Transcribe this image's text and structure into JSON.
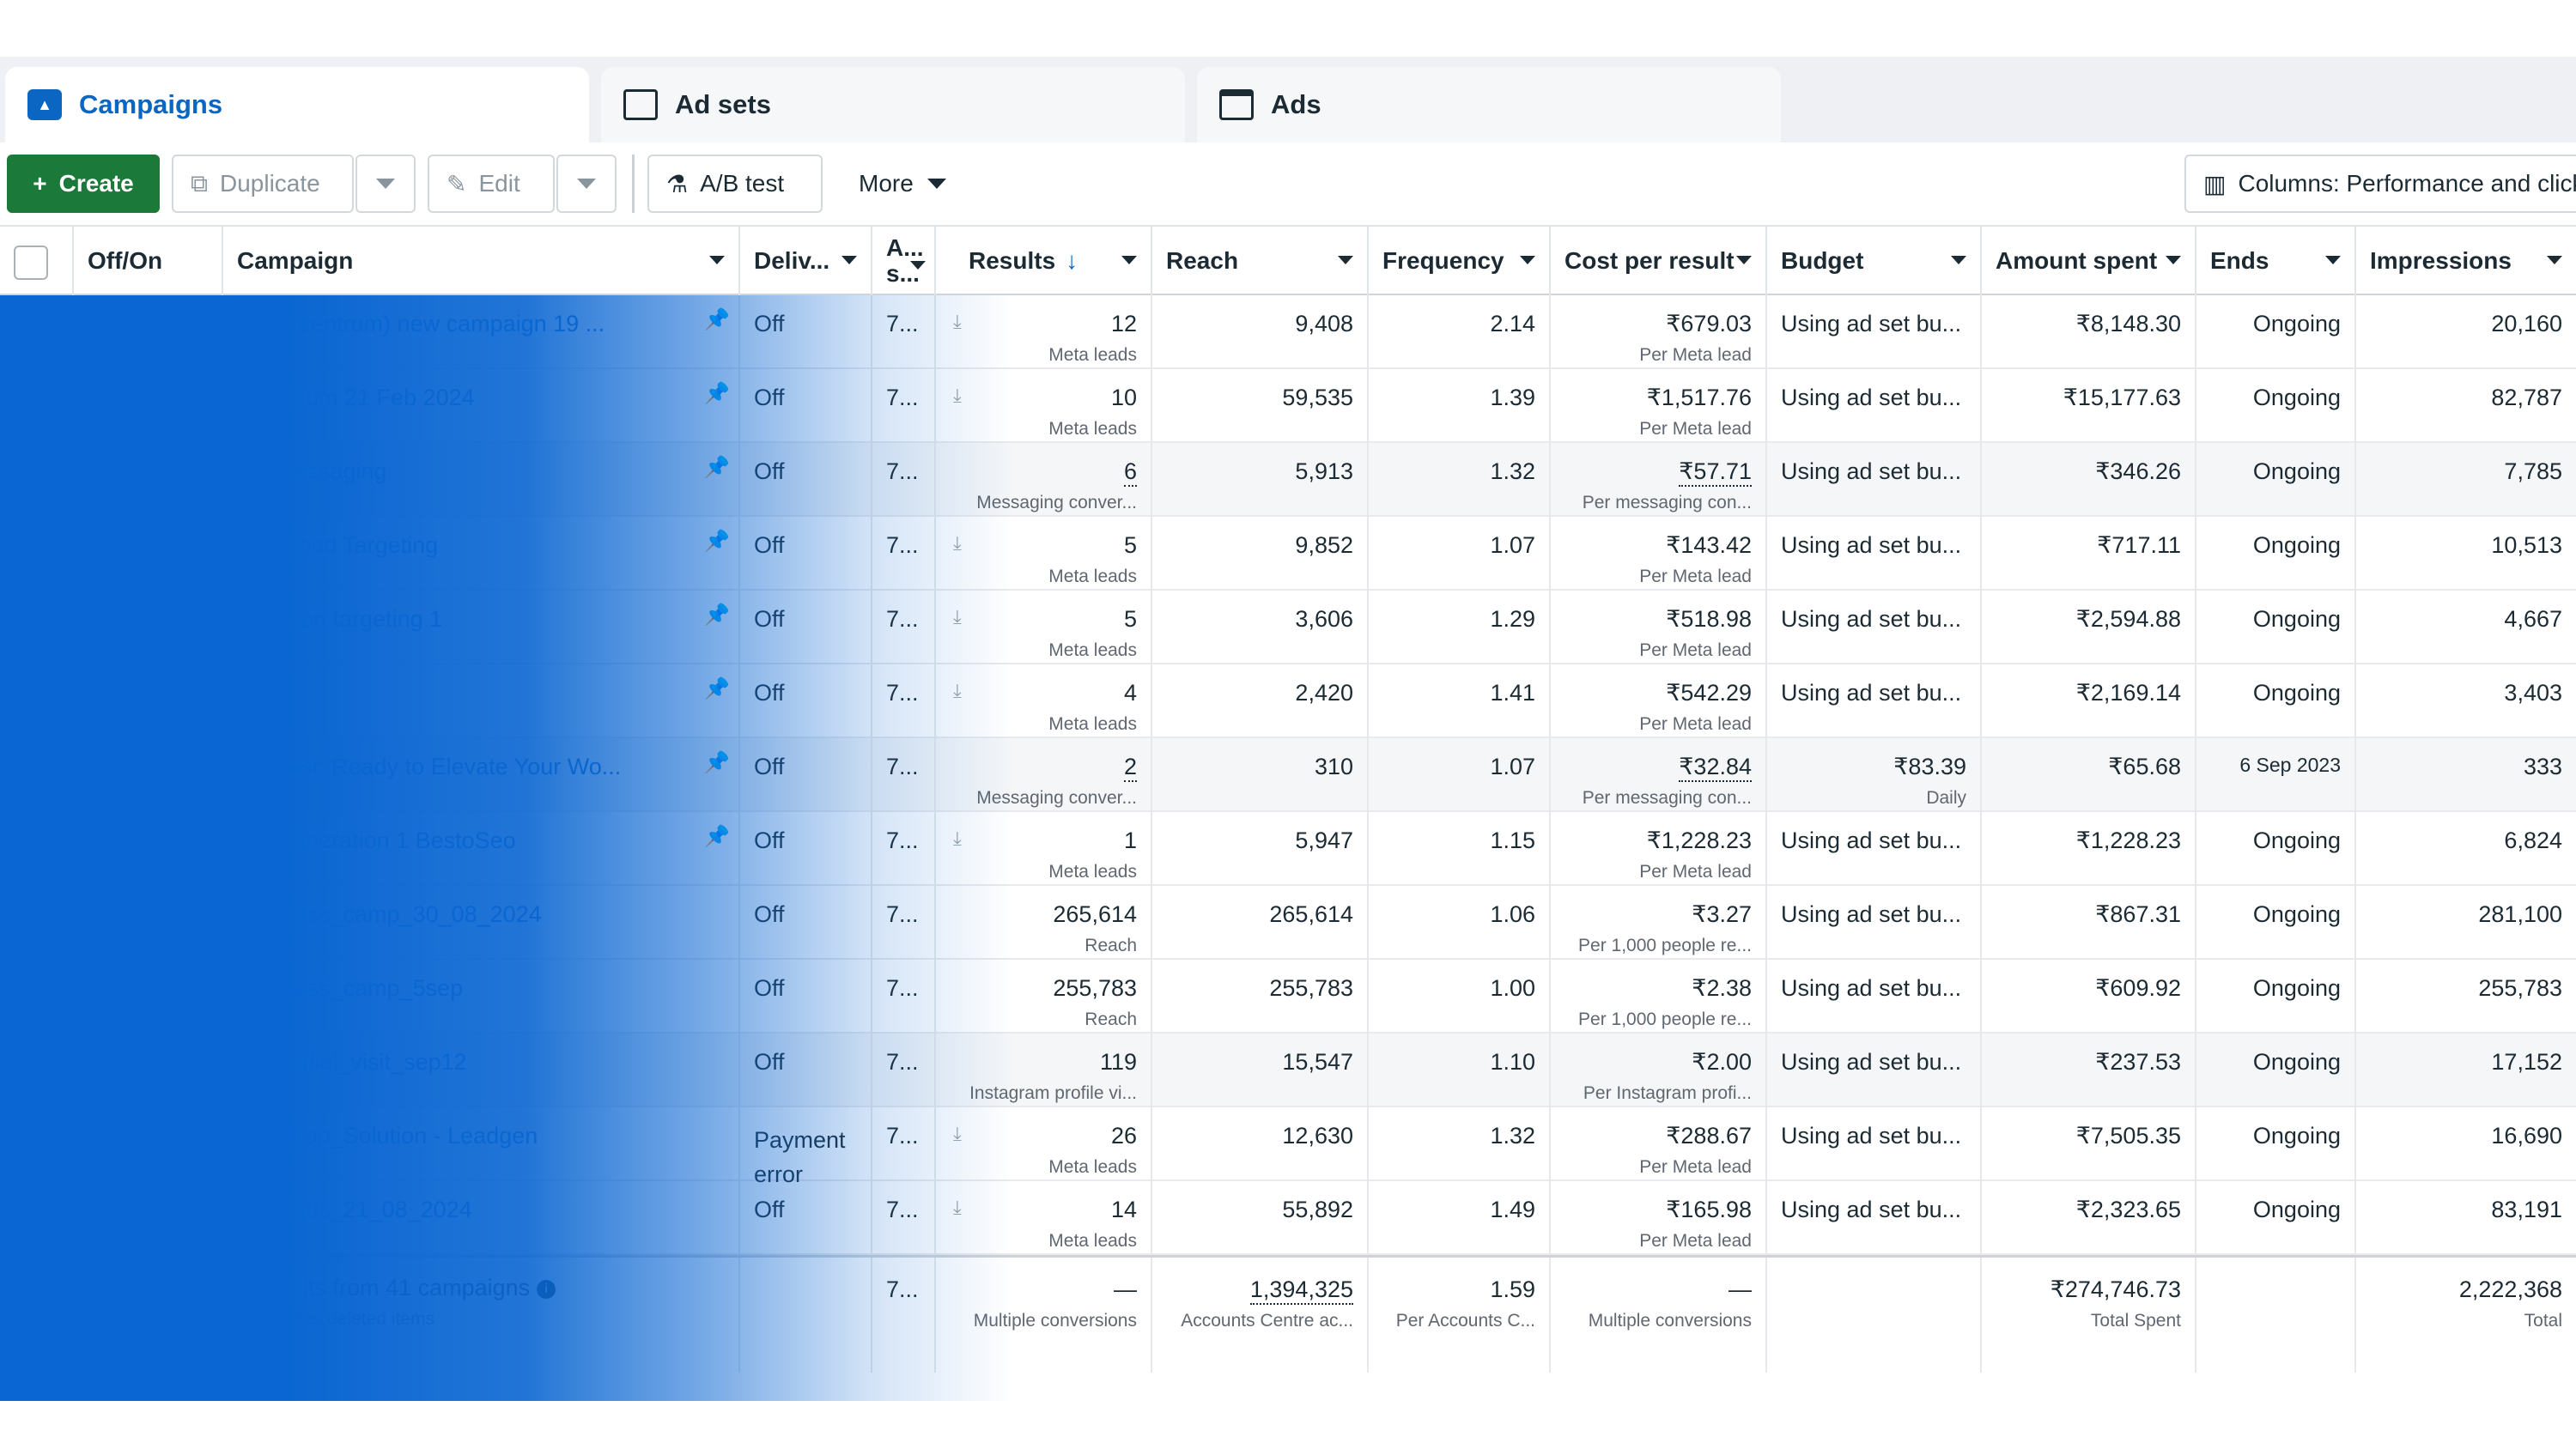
{
  "tabs": [
    {
      "label": "Campaigns",
      "icon": "campaign-icon",
      "active": true
    },
    {
      "label": "Ad sets",
      "icon": "adsets-grid-icon",
      "active": false
    },
    {
      "label": "Ads",
      "icon": "ads-window-icon",
      "active": false
    }
  ],
  "toolbar": {
    "create_label": "Create",
    "duplicate_label": "Duplicate",
    "edit_label": "Edit",
    "abtest_label": "A/B test",
    "more_label": "More",
    "columns_label": "Columns: Performance and clicks"
  },
  "columns": {
    "offon": "Off/On",
    "campaign": "Campaign",
    "delivery": "Deliv...",
    "attribution_line1": "A...",
    "attribution_line2": "s...",
    "results": "Results",
    "reach": "Reach",
    "frequency": "Frequency",
    "cost_per_result": "Cost per result",
    "budget": "Budget",
    "amount_spent": "Amount spent",
    "ends": "Ends",
    "impressions": "Impressions"
  },
  "rows": [
    {
      "campaign": "(Old centrum) new campaign 19 ...",
      "pinned": true,
      "delivery": "Off",
      "attribution": "7...",
      "results": "12",
      "results_sub": "Meta leads",
      "reach": "9,408",
      "frequency": "2.14",
      "cpr": "₹679.03",
      "cpr_sub": "Per Meta lead",
      "budget": "Using ad set bu...",
      "budget_sub": "",
      "spent": "₹8,148.30",
      "ends": "Ongoing",
      "impressions": "20,160"
    },
    {
      "campaign": "Centrum 21 Feb 2024",
      "pinned": true,
      "delivery": "Off",
      "attribution": "7...",
      "results": "10",
      "results_sub": "Meta leads",
      "reach": "59,535",
      "frequency": "1.39",
      "cpr": "₹1,517.76",
      "cpr_sub": "Per Meta lead",
      "budget": "Using ad set bu...",
      "budget_sub": "",
      "spent": "₹15,177.63",
      "ends": "Ongoing",
      "impressions": "82,787"
    },
    {
      "campaign": "... messaging",
      "pinned": true,
      "delivery": "Off",
      "attribution": "7...",
      "results": "6",
      "results_sub": "Messaging conver...",
      "reach": "5,913",
      "frequency": "1.32",
      "cpr": "₹57.71",
      "cpr_sub": "Per messaging con...",
      "budget": "Using ad set bu...",
      "budget_sub": "",
      "spent": "₹346.26",
      "ends": "Ongoing",
      "impressions": "7,785"
    },
    {
      "campaign": "... Broad Targeting",
      "pinned": true,
      "delivery": "Off",
      "attribution": "7...",
      "results": "5",
      "results_sub": "Meta leads",
      "reach": "9,852",
      "frequency": "1.07",
      "cpr": "₹143.42",
      "cpr_sub": "Per Meta lead",
      "budget": "Using ad set bu...",
      "budget_sub": "",
      "spent": "₹717.11",
      "ends": "Ongoing",
      "impressions": "10,513"
    },
    {
      "campaign": "... open targeting 1",
      "pinned": true,
      "delivery": "Off",
      "attribution": "7...",
      "results": "5",
      "results_sub": "Meta leads",
      "reach": "3,606",
      "frequency": "1.29",
      "cpr": "₹518.98",
      "cpr_sub": "Per Meta lead",
      "budget": "Using ad set bu...",
      "budget_sub": "",
      "spent": "₹2,594.88",
      "ends": "Ongoing",
      "impressions": "4,667"
    },
    {
      "campaign": "",
      "pinned": true,
      "delivery": "Off",
      "attribution": "7...",
      "results": "4",
      "results_sub": "Meta leads",
      "reach": "2,420",
      "frequency": "1.41",
      "cpr": "₹542.29",
      "cpr_sub": "Per Meta lead",
      "budget": "Using ad set bu...",
      "budget_sub": "",
      "spent": "₹2,169.14",
      "ends": "Ongoing",
      "impressions": "3,403"
    },
    {
      "campaign": "... post: Ready to Elevate Your Wo...",
      "pinned": true,
      "delivery": "Off",
      "attribution": "7...",
      "results": "2",
      "results_sub": "Messaging conver...",
      "reach": "310",
      "frequency": "1.07",
      "cpr": "₹32.84",
      "cpr_sub": "Per messaging con...",
      "budget": "₹83.39",
      "budget_sub": "Daily",
      "spent": "₹65.68",
      "ends": "6 Sep 2023",
      "impressions": "333"
    },
    {
      "campaign": "... Generation 1 BestoSeo",
      "pinned": true,
      "delivery": "Off",
      "attribution": "7...",
      "results": "1",
      "results_sub": "Meta leads",
      "reach": "5,947",
      "frequency": "1.15",
      "cpr": "₹1,228.23",
      "cpr_sub": "Per Meta lead",
      "budget": "Using ad set bu...",
      "budget_sub": "",
      "spent": "₹1,228.23",
      "ends": "Ongoing",
      "impressions": "6,824"
    },
    {
      "campaign": "... mass_camp_30_08_2024",
      "pinned": false,
      "delivery": "Off",
      "attribution": "7...",
      "results": "265,614",
      "results_sub": "Reach",
      "reach": "265,614",
      "frequency": "1.06",
      "cpr": "₹3.27",
      "cpr_sub": "Per 1,000 people re...",
      "budget": "Using ad set bu...",
      "budget_sub": "",
      "spent": "₹867.31",
      "ends": "Ongoing",
      "impressions": "281,100"
    },
    {
      "campaign": "... mass_camp_5sep",
      "pinned": false,
      "delivery": "Off",
      "attribution": "7...",
      "results": "255,783",
      "results_sub": "Reach",
      "reach": "255,783",
      "frequency": "1.00",
      "cpr": "₹2.38",
      "cpr_sub": "Per 1,000 people re...",
      "budget": "Using ad set bu...",
      "budget_sub": "",
      "spent": "₹609.92",
      "ends": "Ongoing",
      "impressions": "255,783"
    },
    {
      "campaign": "... profiel_visit_sep12",
      "pinned": false,
      "delivery": "Off",
      "attribution": "7...",
      "results": "119",
      "results_sub": "Instagram profile vi...",
      "reach": "15,547",
      "frequency": "1.10",
      "cpr": "₹2.00",
      "cpr_sub": "Per Instagram profi...",
      "budget": "Using ad set bu...",
      "budget_sub": "",
      "spent": "₹237.53",
      "ends": "Ongoing",
      "impressions": "17,152"
    },
    {
      "campaign": "..._Prop_Solution - Leadgen",
      "pinned": false,
      "delivery": "Payment error",
      "attribution": "7...",
      "results": "26",
      "results_sub": "Meta leads",
      "reach": "12,630",
      "frequency": "1.32",
      "cpr": "₹288.67",
      "cpr_sub": "Per Meta lead",
      "budget": "Using ad set bu...",
      "budget_sub": "",
      "spent": "₹7,505.35",
      "ends": "Ongoing",
      "impressions": "16,690"
    },
    {
      "campaign": "... leads_21_08_2024",
      "pinned": false,
      "delivery": "Off",
      "attribution": "7...",
      "results": "14",
      "results_sub": "Meta leads",
      "reach": "55,892",
      "frequency": "1.49",
      "cpr": "₹165.98",
      "cpr_sub": "Per Meta lead",
      "budget": "Using ad set bu...",
      "budget_sub": "",
      "spent": "₹2,323.65",
      "ends": "Ongoing",
      "impressions": "83,191"
    }
  ],
  "totals": {
    "label": "Results from 41 campaigns",
    "sublabel": "Excludes deleted items",
    "attribution": "7...",
    "results": "—",
    "results_sub": "Multiple conversions",
    "reach": "1,394,325",
    "reach_sub": "Accounts Centre ac...",
    "frequency": "1.59",
    "frequency_sub": "Per Accounts C...",
    "cpr": "—",
    "cpr_sub": "Multiple conversions",
    "spent": "₹274,746.73",
    "spent_sub": "Total Spent",
    "impressions": "2,222,368",
    "impressions_sub": "Total"
  },
  "colors": {
    "accent": "#0a66c2",
    "create_button": "#1b7a3a",
    "overlay_blue": "#0a66d2"
  }
}
